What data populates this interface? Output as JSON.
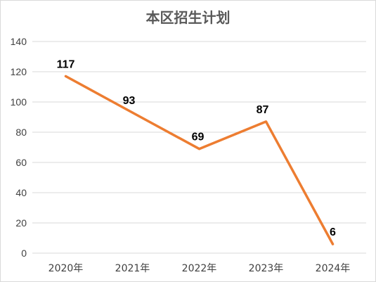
{
  "chart_data": {
    "type": "line",
    "title": "本区招生计划",
    "categories": [
      "2020年",
      "2021年",
      "2022年",
      "2023年",
      "2024年"
    ],
    "values": [
      117,
      93,
      69,
      87,
      6
    ],
    "data_labels": [
      "117",
      "93",
      "69",
      "87",
      "6"
    ],
    "ylim": [
      0,
      140
    ],
    "yticks": [
      0,
      20,
      40,
      60,
      80,
      100,
      120,
      140
    ],
    "ytick_labels": [
      "0",
      "20",
      "40",
      "60",
      "80",
      "100",
      "120",
      "140"
    ],
    "grid": true,
    "legend": "none",
    "line_color": "#ED7D31",
    "grid_color": "#D9D9D9",
    "xlabel": "",
    "ylabel": ""
  }
}
